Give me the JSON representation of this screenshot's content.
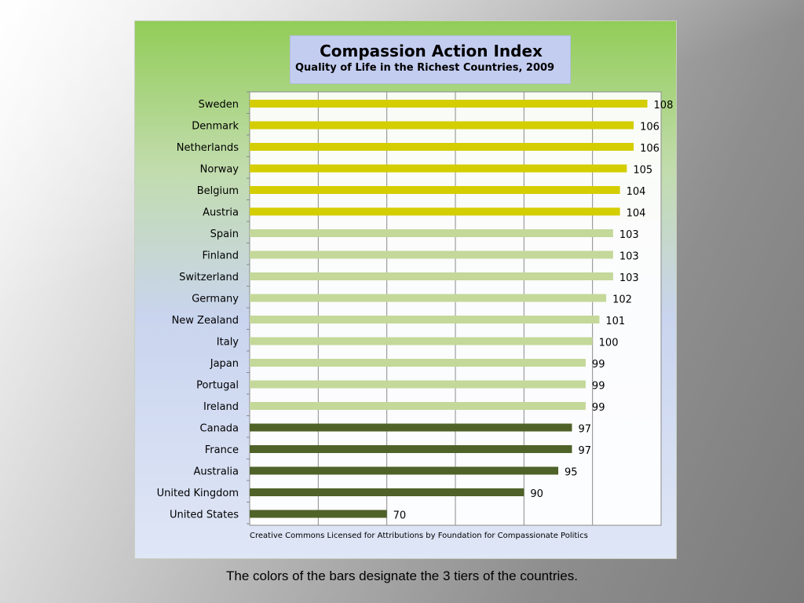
{
  "chart_data": {
    "type": "bar",
    "orientation": "horizontal",
    "title": "Compassion  Action Index",
    "subtitle": "Quality of Life in the Richest Countries, 2009",
    "categories": [
      "Sweden",
      "Denmark",
      "Netherlands",
      "Norway",
      "Belgium",
      "Austria",
      "Spain",
      "Finland",
      "Switzerland",
      "Germany",
      "New Zealand",
      "Italy",
      "Japan",
      "Portugal",
      "Ireland",
      "Canada",
      "France",
      "Australia",
      "United Kingdom",
      "United States"
    ],
    "values": [
      108,
      106,
      106,
      105,
      104,
      104,
      103,
      103,
      103,
      102,
      101,
      100,
      99,
      99,
      99,
      97,
      97,
      95,
      90,
      70
    ],
    "tiers": [
      1,
      1,
      1,
      1,
      1,
      1,
      2,
      2,
      2,
      2,
      2,
      2,
      2,
      2,
      2,
      3,
      3,
      3,
      3,
      3
    ],
    "tier_colors": {
      "1": "#d4cd00",
      "2": "#c4d89a",
      "3": "#4f6228"
    },
    "xlim": [
      50,
      110
    ],
    "grid": true,
    "credit": "Creative Commons Licensed for Attributions by Foundation for Compassionate Politics"
  },
  "caption": "The colors of the bars designate the 3 tiers of the countries."
}
